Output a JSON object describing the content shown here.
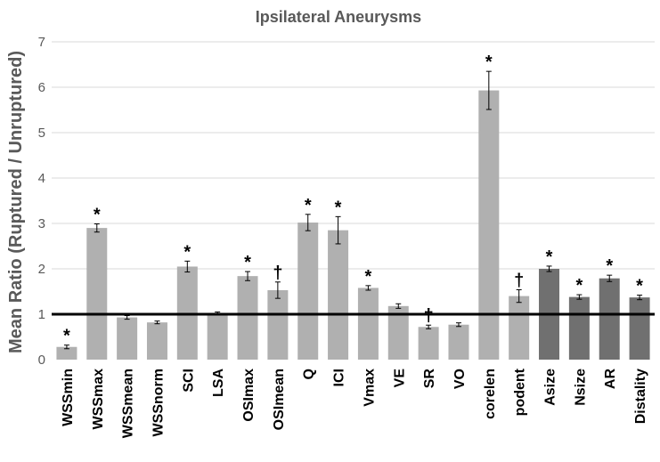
{
  "chart_data": {
    "type": "bar",
    "title": "Ipsilateral Aneurysms",
    "ylabel": "Mean Ratio (Ruptured / Unruptured)",
    "xlabel": "",
    "ylim": [
      0,
      7
    ],
    "yticks": [
      0,
      1,
      2,
      3,
      4,
      5,
      6,
      7
    ],
    "grid": true,
    "reference_line": 1,
    "categories": [
      "WSSmin",
      "WSSmax",
      "WSSmean",
      "WSSnorm",
      "SCI",
      "LSA",
      "OSImax",
      "OSImean",
      "Q",
      "ICI",
      "Vmax",
      "VE",
      "SR",
      "VO",
      "corelen",
      "podent",
      "Asize",
      "Nsize",
      "AR",
      "Distality"
    ],
    "values": [
      0.28,
      2.9,
      0.93,
      0.82,
      2.05,
      1.03,
      1.84,
      1.53,
      3.02,
      2.85,
      1.58,
      1.18,
      0.72,
      0.77,
      5.93,
      1.4,
      2.0,
      1.38,
      1.79,
      1.37
    ],
    "errors": [
      0.04,
      0.09,
      0.04,
      0.03,
      0.12,
      0.02,
      0.1,
      0.18,
      0.18,
      0.3,
      0.05,
      0.05,
      0.04,
      0.04,
      0.42,
      0.14,
      0.06,
      0.05,
      0.07,
      0.05
    ],
    "annotations": [
      "*",
      "*",
      "",
      "",
      "*",
      "",
      "*",
      "†",
      "*",
      "*",
      "*",
      "",
      "†",
      "",
      "*",
      "†",
      "*",
      "*",
      "*",
      "*"
    ],
    "colors": {
      "light_bar": "#b0b0b0",
      "dark_bar": "#707070",
      "reference_line": "#000000",
      "grid": "#d9d9d9",
      "text": "#595959"
    },
    "dark_categories": [
      "Asize",
      "Nsize",
      "AR",
      "Distality"
    ]
  }
}
